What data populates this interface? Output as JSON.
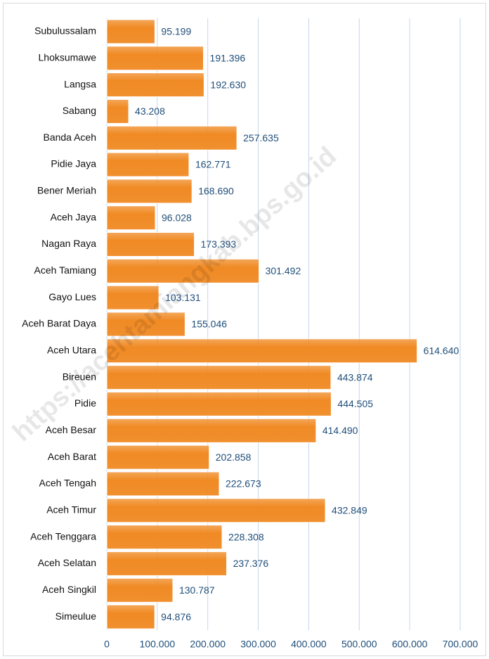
{
  "chart_data": {
    "type": "bar",
    "orientation": "horizontal",
    "watermark": "https://acehtamiangkab.bps.go.id",
    "categories": [
      "Subulussalam",
      "Lhoksumawe",
      "Langsa",
      "Sabang",
      "Banda Aceh",
      "Pidie Jaya",
      "Bener Meriah",
      "Aceh Jaya",
      "Nagan Raya",
      "Aceh Tamiang",
      "Gayo Lues",
      "Aceh Barat Daya",
      "Aceh Utara",
      "Bireuen",
      "Pidie",
      "Aceh Besar",
      "Aceh Barat",
      "Aceh Tengah",
      "Aceh Timur",
      "Aceh Tenggara",
      "Aceh Selatan",
      "Aceh Singkil",
      "Simeulue"
    ],
    "values": [
      95199,
      191396,
      192630,
      43208,
      257635,
      162771,
      168690,
      96028,
      173393,
      301492,
      103131,
      155046,
      614640,
      443874,
      444505,
      414490,
      202858,
      222673,
      432849,
      228308,
      237376,
      130787,
      94876
    ],
    "value_labels": [
      "95.199",
      "191.396",
      "192.630",
      "43.208",
      "257.635",
      "162.771",
      "168.690",
      "96.028",
      "173.393",
      "301.492",
      "103.131",
      "155.046",
      "614.640",
      "443.874",
      "444.505",
      "414.490",
      "202.858",
      "222.673",
      "432.849",
      "228.308",
      "237.376",
      "130.787",
      "94.876"
    ],
    "color": "#f08a24",
    "xlim": [
      0,
      700000
    ],
    "xticks": [
      0,
      {
        "value": 100000,
        "label": "100.000"
      },
      {
        "value": 200000,
        "label": "200.000"
      },
      {
        "value": 300000,
        "label": "300.000"
      },
      {
        "value": 400000,
        "label": "400.000"
      },
      {
        "value": 500000,
        "label": "500.000"
      },
      {
        "value": 600000,
        "label": "600.000"
      },
      {
        "value": 700000,
        "label": "700.000"
      }
    ],
    "grid": true
  }
}
